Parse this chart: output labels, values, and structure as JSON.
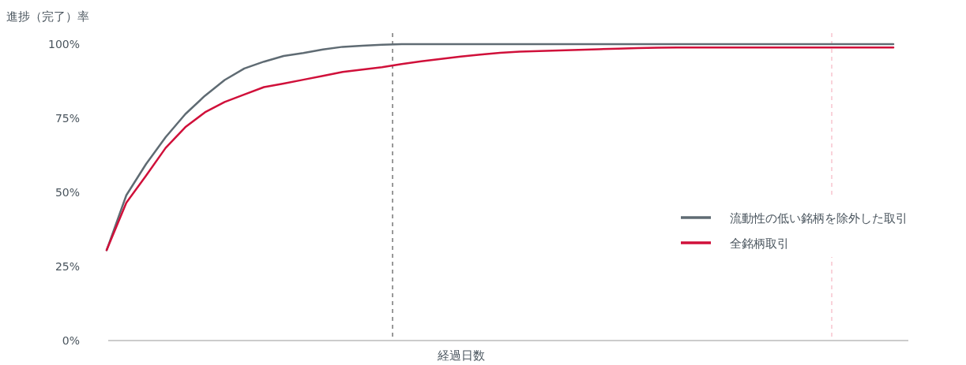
{
  "chart_data": {
    "type": "line",
    "ylabel": "進捗（完了）率",
    "xlabel": "経過日数",
    "categories": [
      null,
      null,
      null,
      null,
      null,
      null,
      null,
      null,
      null,
      null,
      null,
      null,
      null,
      null,
      null,
      null,
      null,
      null,
      null,
      null,
      null,
      null,
      null,
      null,
      null,
      null,
      null,
      null,
      null,
      null,
      null,
      null,
      null,
      null,
      null,
      null,
      null,
      null,
      null,
      null,
      null
    ],
    "series": [
      {
        "name": "流動性の低い銘柄を除外した取引",
        "color": "#5f6b73",
        "values": [
          30.5,
          49,
          59.5,
          68.6,
          76.4,
          82.6,
          87.9,
          91.8,
          94.1,
          96,
          97,
          98.2,
          99.1,
          99.5,
          99.8,
          100,
          100,
          100,
          100,
          100,
          100,
          100,
          100,
          100,
          100,
          100,
          100,
          100,
          100,
          100,
          100,
          100,
          100,
          100,
          100,
          100,
          100,
          100,
          100,
          100,
          100
        ]
      },
      {
        "name": "全銘柄取引",
        "color": "#d0103a",
        "values": [
          30.5,
          46.5,
          55.6,
          65,
          72,
          77,
          80.5,
          83,
          85.5,
          86.7,
          88,
          89.3,
          90.6,
          91.4,
          92.2,
          93.3,
          94.2,
          95,
          95.8,
          96.5,
          97.1,
          97.5,
          97.7,
          97.9,
          98.1,
          98.3,
          98.5,
          98.7,
          98.8,
          98.9,
          98.9,
          98.9,
          98.9,
          98.9,
          98.9,
          98.9,
          98.9,
          98.9,
          98.9,
          98.9,
          98.9
        ]
      }
    ],
    "ylim": [
      0,
      100
    ],
    "yticks": [
      {
        "value": 0,
        "label": "0%"
      },
      {
        "value": 25,
        "label": "25%"
      },
      {
        "value": 50,
        "label": "50%"
      },
      {
        "value": 75,
        "label": "75%"
      },
      {
        "value": 100,
        "label": "100%"
      }
    ],
    "grid": false,
    "legend": "right",
    "line_style": "solid",
    "marker": "none"
  }
}
